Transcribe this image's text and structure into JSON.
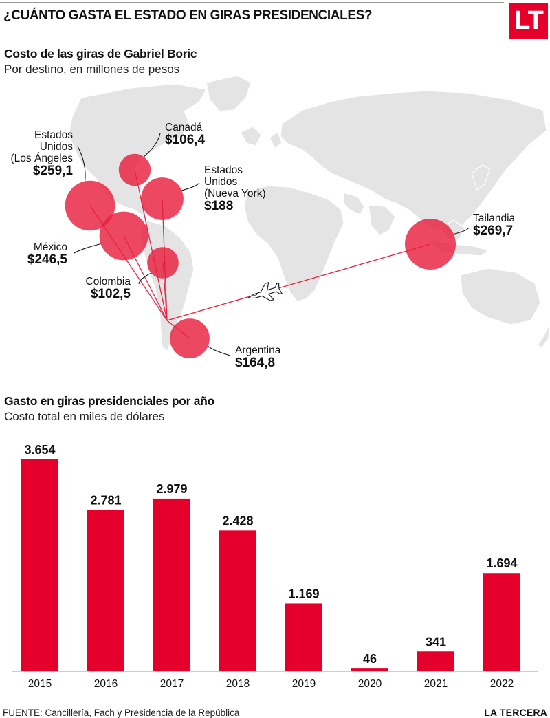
{
  "header": {
    "title": "¿CUÁNTO GASTA EL ESTADO EN GIRAS PRESIDENCIALES?",
    "logo_text": "LT"
  },
  "map_section": {
    "title": "Costo de las giras de Gabriel Boric",
    "subtitle": "Por destino, en millones de pesos",
    "destinations": [
      {
        "name": "Estados Unidos (Los Ángeles",
        "label_lines": [
          "Estados",
          "Unidos",
          "(Los Ángeles"
        ],
        "value_label": "$259,1",
        "value": 259.1
      },
      {
        "name": "Canadá",
        "label_lines": [
          "Canadá"
        ],
        "value_label": "$106,4",
        "value": 106.4
      },
      {
        "name": "Estados Unidos (Nueva York)",
        "label_lines": [
          "Estados",
          "Unidos",
          "(Nueva York)"
        ],
        "value_label": "$188",
        "value": 188
      },
      {
        "name": "México",
        "label_lines": [
          "México"
        ],
        "value_label": "$246,5",
        "value": 246.5
      },
      {
        "name": "Colombia",
        "label_lines": [
          "Colombia"
        ],
        "value_label": "$102,5",
        "value": 102.5
      },
      {
        "name": "Tailandia",
        "label_lines": [
          "Tailandia"
        ],
        "value_label": "$269,7",
        "value": 269.7
      },
      {
        "name": "Argentina",
        "label_lines": [
          "Argentina"
        ],
        "value_label": "$164,8",
        "value": 164.8
      }
    ],
    "bubble_color": "#e8203f",
    "route_color": "#e8203f",
    "land_color": "#e4e4e4",
    "icon": "airplane-icon"
  },
  "chart_data": {
    "type": "bar",
    "title": "Gasto en giras presidenciales por año",
    "subtitle": "Costo total en miles de dólares",
    "categories": [
      "2015",
      "2016",
      "2017",
      "2018",
      "2019",
      "2020",
      "2021",
      "2022"
    ],
    "values": [
      3654,
      2781,
      2979,
      2428,
      1169,
      46,
      341,
      1694
    ],
    "value_labels": [
      "3.654",
      "2.781",
      "2.979",
      "2.428",
      "1.169",
      "46",
      "341",
      "1.694"
    ],
    "ylim": [
      0,
      3654
    ],
    "grid": false,
    "bar_color": "#e4002b"
  },
  "footer": {
    "source": "FUENTE: Cancillería, Fach y Presidencia de la República",
    "brand": "LA TERCERA"
  }
}
